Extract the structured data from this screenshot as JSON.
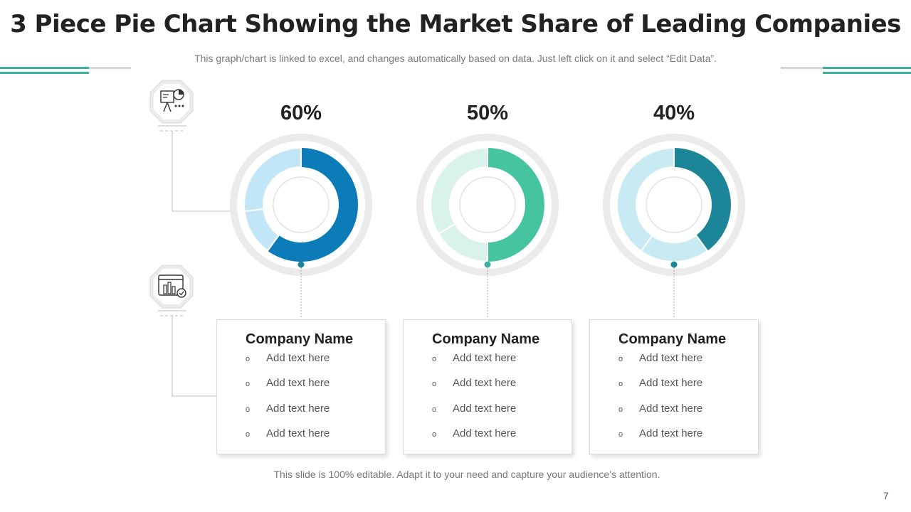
{
  "header": {
    "title": "3 Piece Pie Chart Showing the Market Share of Leading Companies",
    "subtitle": "This graph/chart is linked to excel, and changes automatically based on data. Just left click on it and select “Edit Data”."
  },
  "chart_data": [
    {
      "type": "pie",
      "label": "60%",
      "value": 60,
      "colors": [
        "#0b7cb8",
        "#c2e6f7"
      ]
    },
    {
      "type": "pie",
      "label": "50%",
      "value": 50,
      "colors": [
        "#45c49f",
        "#d9f2eb"
      ]
    },
    {
      "type": "pie",
      "label": "40%",
      "value": 40,
      "colors": [
        "#1d8598",
        "#c8eaf3"
      ]
    }
  ],
  "cards": [
    {
      "title": "Company Name",
      "bullets": [
        "Add text here",
        "Add text here",
        "Add text here",
        "Add text here"
      ]
    },
    {
      "title": "Company Name",
      "bullets": [
        "Add text here",
        "Add text here",
        "Add text here",
        "Add text here"
      ]
    },
    {
      "title": "Company Name",
      "bullets": [
        "Add text here",
        "Add text here",
        "Add text here",
        "Add text here"
      ]
    }
  ],
  "icons": [
    "presentation-board-icon",
    "dashboard-window-icon"
  ],
  "footer": {
    "note": "This slide is 100% editable. Adapt it to your need and capture your audience’s attention."
  },
  "page_number": "7",
  "theme": {
    "accent": "#3cb2a2",
    "dot": "#1d8598"
  }
}
